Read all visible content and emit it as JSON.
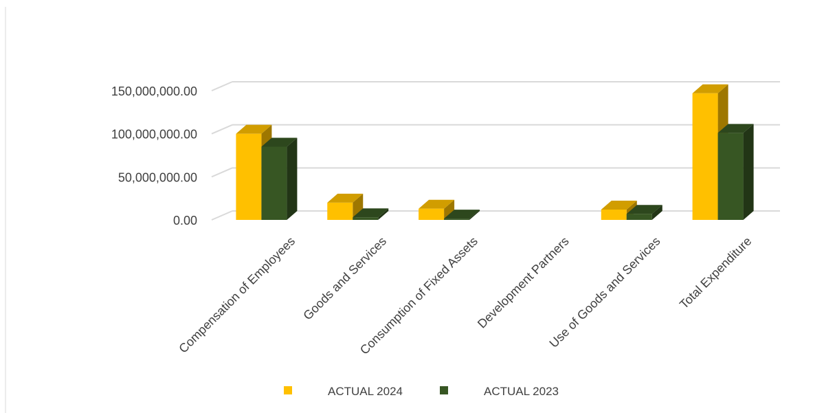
{
  "chart_data": {
    "type": "bar",
    "style": "3d-clustered-column",
    "categories": [
      "Compensation of Employees",
      "Goods and Services",
      "Consumption of Fixed Assets",
      "Development Partners",
      "Use of Goods and Services",
      "Total Expenditure"
    ],
    "series": [
      {
        "name": "ACTUAL 2024",
        "color": "#FFC000",
        "values": [
          100000000,
          20000000,
          13000000,
          0,
          12000000,
          147000000
        ]
      },
      {
        "name": "ACTUAL 2023",
        "color": "#375623",
        "values": [
          85000000,
          3000000,
          1500000,
          0,
          7000000,
          101000000
        ]
      }
    ],
    "y_ticks": [
      "0.00",
      "50,000,000.00",
      "100,000,000.00",
      "150,000,000.00"
    ],
    "ylim": [
      0,
      150000000
    ],
    "grid": true,
    "legend": "bottom",
    "title": "",
    "xlabel": "",
    "ylabel": ""
  }
}
